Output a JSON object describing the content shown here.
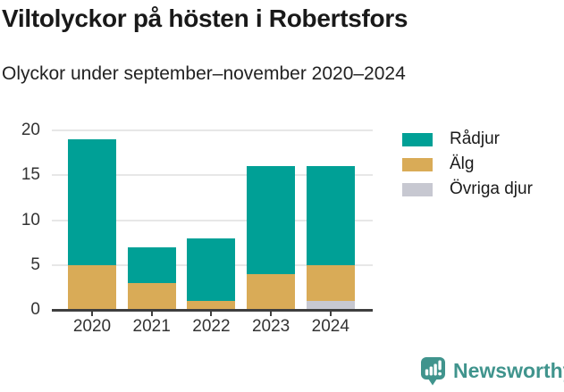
{
  "header": {
    "title": "Viltolyckor på hösten i Robertsfors",
    "subtitle": "Olyckor under september–november 2020–2024"
  },
  "chart_data": {
    "type": "bar",
    "stacked": true,
    "title": "Viltolyckor på hösten i Robertsfors",
    "subtitle": "Olyckor under september–november 2020–2024",
    "categories": [
      "2020",
      "2021",
      "2022",
      "2023",
      "2024"
    ],
    "series": [
      {
        "name": "Rådjur",
        "color": "#00A096",
        "values": [
          14,
          4,
          7,
          12,
          11
        ]
      },
      {
        "name": "Älg",
        "color": "#D9AB57",
        "values": [
          5,
          3,
          1,
          4,
          4
        ]
      },
      {
        "name": "Övriga djur",
        "color": "#C7C8D1",
        "values": [
          0,
          0,
          0,
          0,
          1
        ]
      }
    ],
    "stack_order_bottom_to_top": [
      "Övriga djur",
      "Älg",
      "Rådjur"
    ],
    "totals": [
      19,
      7,
      8,
      16,
      16
    ],
    "xlabel": "",
    "ylabel": "",
    "ylim": [
      0,
      20
    ],
    "yticks": [
      0,
      5,
      10,
      15,
      20
    ],
    "grid": true,
    "legend_position": "right",
    "colors": {
      "grid": "#E7E7E7",
      "axis": "#3F3F3F",
      "tick_label": "#333333"
    }
  },
  "footer": {
    "brand": "Newsworthy",
    "brand_color": "#40948D",
    "logo_icon": "bar-chart-speech-bubble-icon"
  }
}
